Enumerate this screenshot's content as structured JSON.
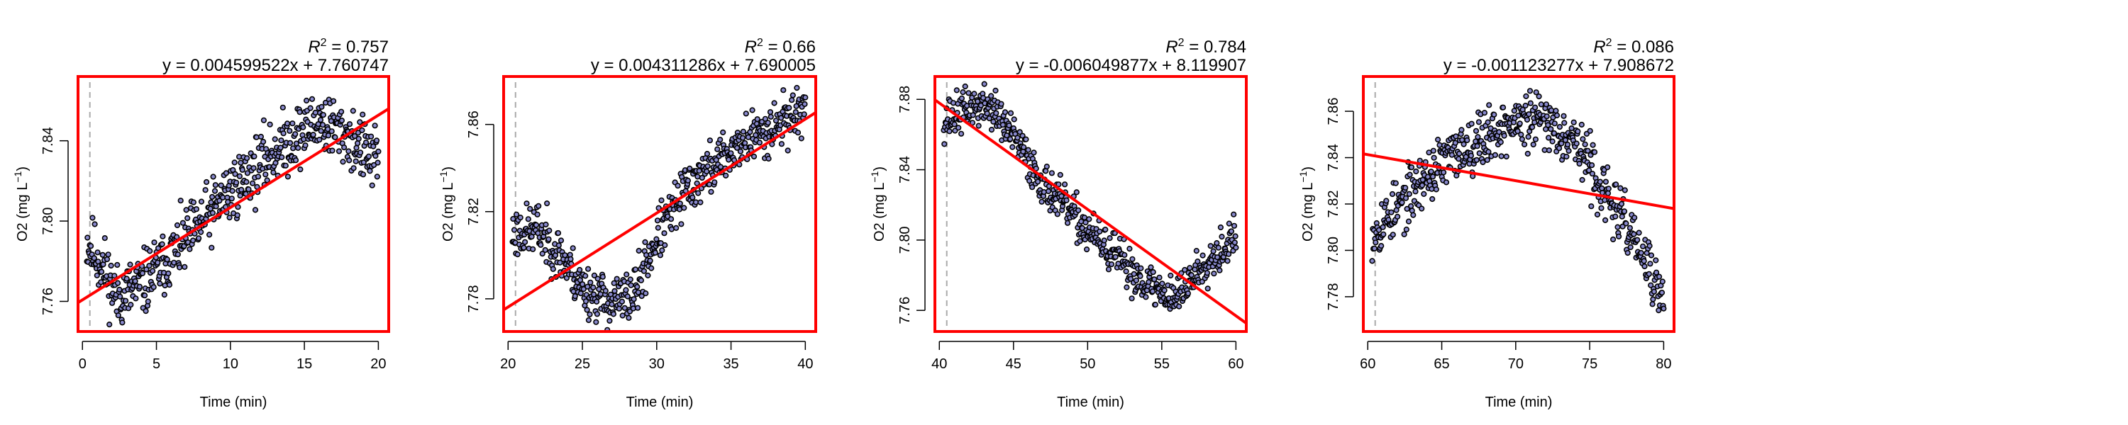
{
  "colors": {
    "frame": "#ff0000",
    "fit_line": "#ff0000",
    "points_stroke": "#000000",
    "points_fill": "#8888cc",
    "marker_line": "#aaaaaa"
  },
  "chart_data": [
    {
      "type": "scatter",
      "title_r2": "0.757",
      "equation": "y = 0.004599522x + 7.760747",
      "xlabel": "Time (min)",
      "ylabel_main": "O2 (mg L",
      "ylabel_sup": "−1",
      "xlim": [
        -0.3,
        20.7
      ],
      "ylim": [
        7.745,
        7.872
      ],
      "xticks": [
        0,
        5,
        10,
        15,
        20
      ],
      "yticks": [
        7.76,
        7.8,
        7.84
      ],
      "ytick_labels": [
        "7.76",
        "7.80",
        "7.84"
      ],
      "marker_x": 0.5,
      "fit": {
        "slope": 0.004599522,
        "intercept": 7.760747
      },
      "x_start": 0.3,
      "x_end": 20.0,
      "trend": [
        [
          0.3,
          7.79
        ],
        [
          1.5,
          7.776
        ],
        [
          2.3,
          7.762
        ],
        [
          4,
          7.768
        ],
        [
          7,
          7.79
        ],
        [
          10,
          7.815
        ],
        [
          13,
          7.835
        ],
        [
          16,
          7.85
        ],
        [
          18,
          7.842
        ],
        [
          20,
          7.828
        ]
      ],
      "noise": 0.008,
      "seed": 11
    },
    {
      "type": "scatter",
      "title_r2": "0.66",
      "equation": "y = 0.004311286x + 7.690005",
      "xlabel": "Time (min)",
      "ylabel_main": "O2 (mg L",
      "ylabel_sup": "−1",
      "xlim": [
        19.7,
        40.7
      ],
      "ylim": [
        7.765,
        7.882
      ],
      "xticks": [
        20,
        25,
        30,
        35,
        40
      ],
      "yticks": [
        7.78,
        7.82,
        7.86
      ],
      "ytick_labels": [
        "7.78",
        "7.82",
        "7.86"
      ],
      "marker_x": 20.5,
      "fit": {
        "slope": 0.004311286,
        "intercept": 7.690005
      },
      "x_start": 20.3,
      "x_end": 40.0,
      "trend": [
        [
          20.3,
          7.81
        ],
        [
          22,
          7.812
        ],
        [
          23.5,
          7.8
        ],
        [
          25,
          7.785
        ],
        [
          27,
          7.778
        ],
        [
          28.5,
          7.782
        ],
        [
          30,
          7.808
        ],
        [
          32,
          7.83
        ],
        [
          35,
          7.848
        ],
        [
          38,
          7.86
        ],
        [
          40,
          7.868
        ]
      ],
      "noise": 0.006,
      "seed": 23
    },
    {
      "type": "scatter",
      "title_r2": "0.784",
      "equation": "y = -0.006049877x + 8.119907",
      "xlabel": "Time (min)",
      "ylabel_main": "O2 (mg L",
      "ylabel_sup": "−1",
      "xlim": [
        39.7,
        60.7
      ],
      "ylim": [
        7.748,
        7.893
      ],
      "xticks": [
        40,
        45,
        50,
        55,
        60
      ],
      "yticks": [
        7.76,
        7.8,
        7.84,
        7.88
      ],
      "ytick_labels": [
        "7.76",
        "7.80",
        "7.84",
        "7.88"
      ],
      "marker_x": 40.5,
      "fit": {
        "slope": -0.006049877,
        "intercept": 8.119907
      },
      "x_start": 40.3,
      "x_end": 60.0,
      "trend": [
        [
          40.3,
          7.868
        ],
        [
          42,
          7.875
        ],
        [
          43.5,
          7.876
        ],
        [
          45,
          7.858
        ],
        [
          47,
          7.832
        ],
        [
          50,
          7.805
        ],
        [
          53,
          7.782
        ],
        [
          55,
          7.77
        ],
        [
          56,
          7.768
        ],
        [
          58,
          7.788
        ],
        [
          60,
          7.802
        ]
      ],
      "noise": 0.006,
      "seed": 37
    },
    {
      "type": "scatter",
      "title_r2": "0.086",
      "equation": "y = -0.001123277x + 7.908672",
      "xlabel": "Time (min)",
      "ylabel_main": "O2 (mg L",
      "ylabel_sup": "−1",
      "xlim": [
        59.7,
        80.7
      ],
      "ylim": [
        7.765,
        7.875
      ],
      "xticks": [
        60,
        65,
        70,
        75,
        80
      ],
      "yticks": [
        7.78,
        7.8,
        7.82,
        7.84,
        7.86
      ],
      "ytick_labels": [
        "7.78",
        "7.80",
        "7.82",
        "7.84",
        "7.86"
      ],
      "marker_x": 60.5,
      "fit": {
        "slope": -0.001123277,
        "intercept": 7.908672
      },
      "x_start": 60.3,
      "x_end": 80.0,
      "trend": [
        [
          60.3,
          7.808
        ],
        [
          62,
          7.818
        ],
        [
          64,
          7.832
        ],
        [
          66,
          7.842
        ],
        [
          68,
          7.85
        ],
        [
          70,
          7.855
        ],
        [
          72,
          7.856
        ],
        [
          74,
          7.848
        ],
        [
          76,
          7.825
        ],
        [
          78,
          7.805
        ],
        [
          80,
          7.778
        ]
      ],
      "noise": 0.006,
      "seed": 53
    }
  ]
}
